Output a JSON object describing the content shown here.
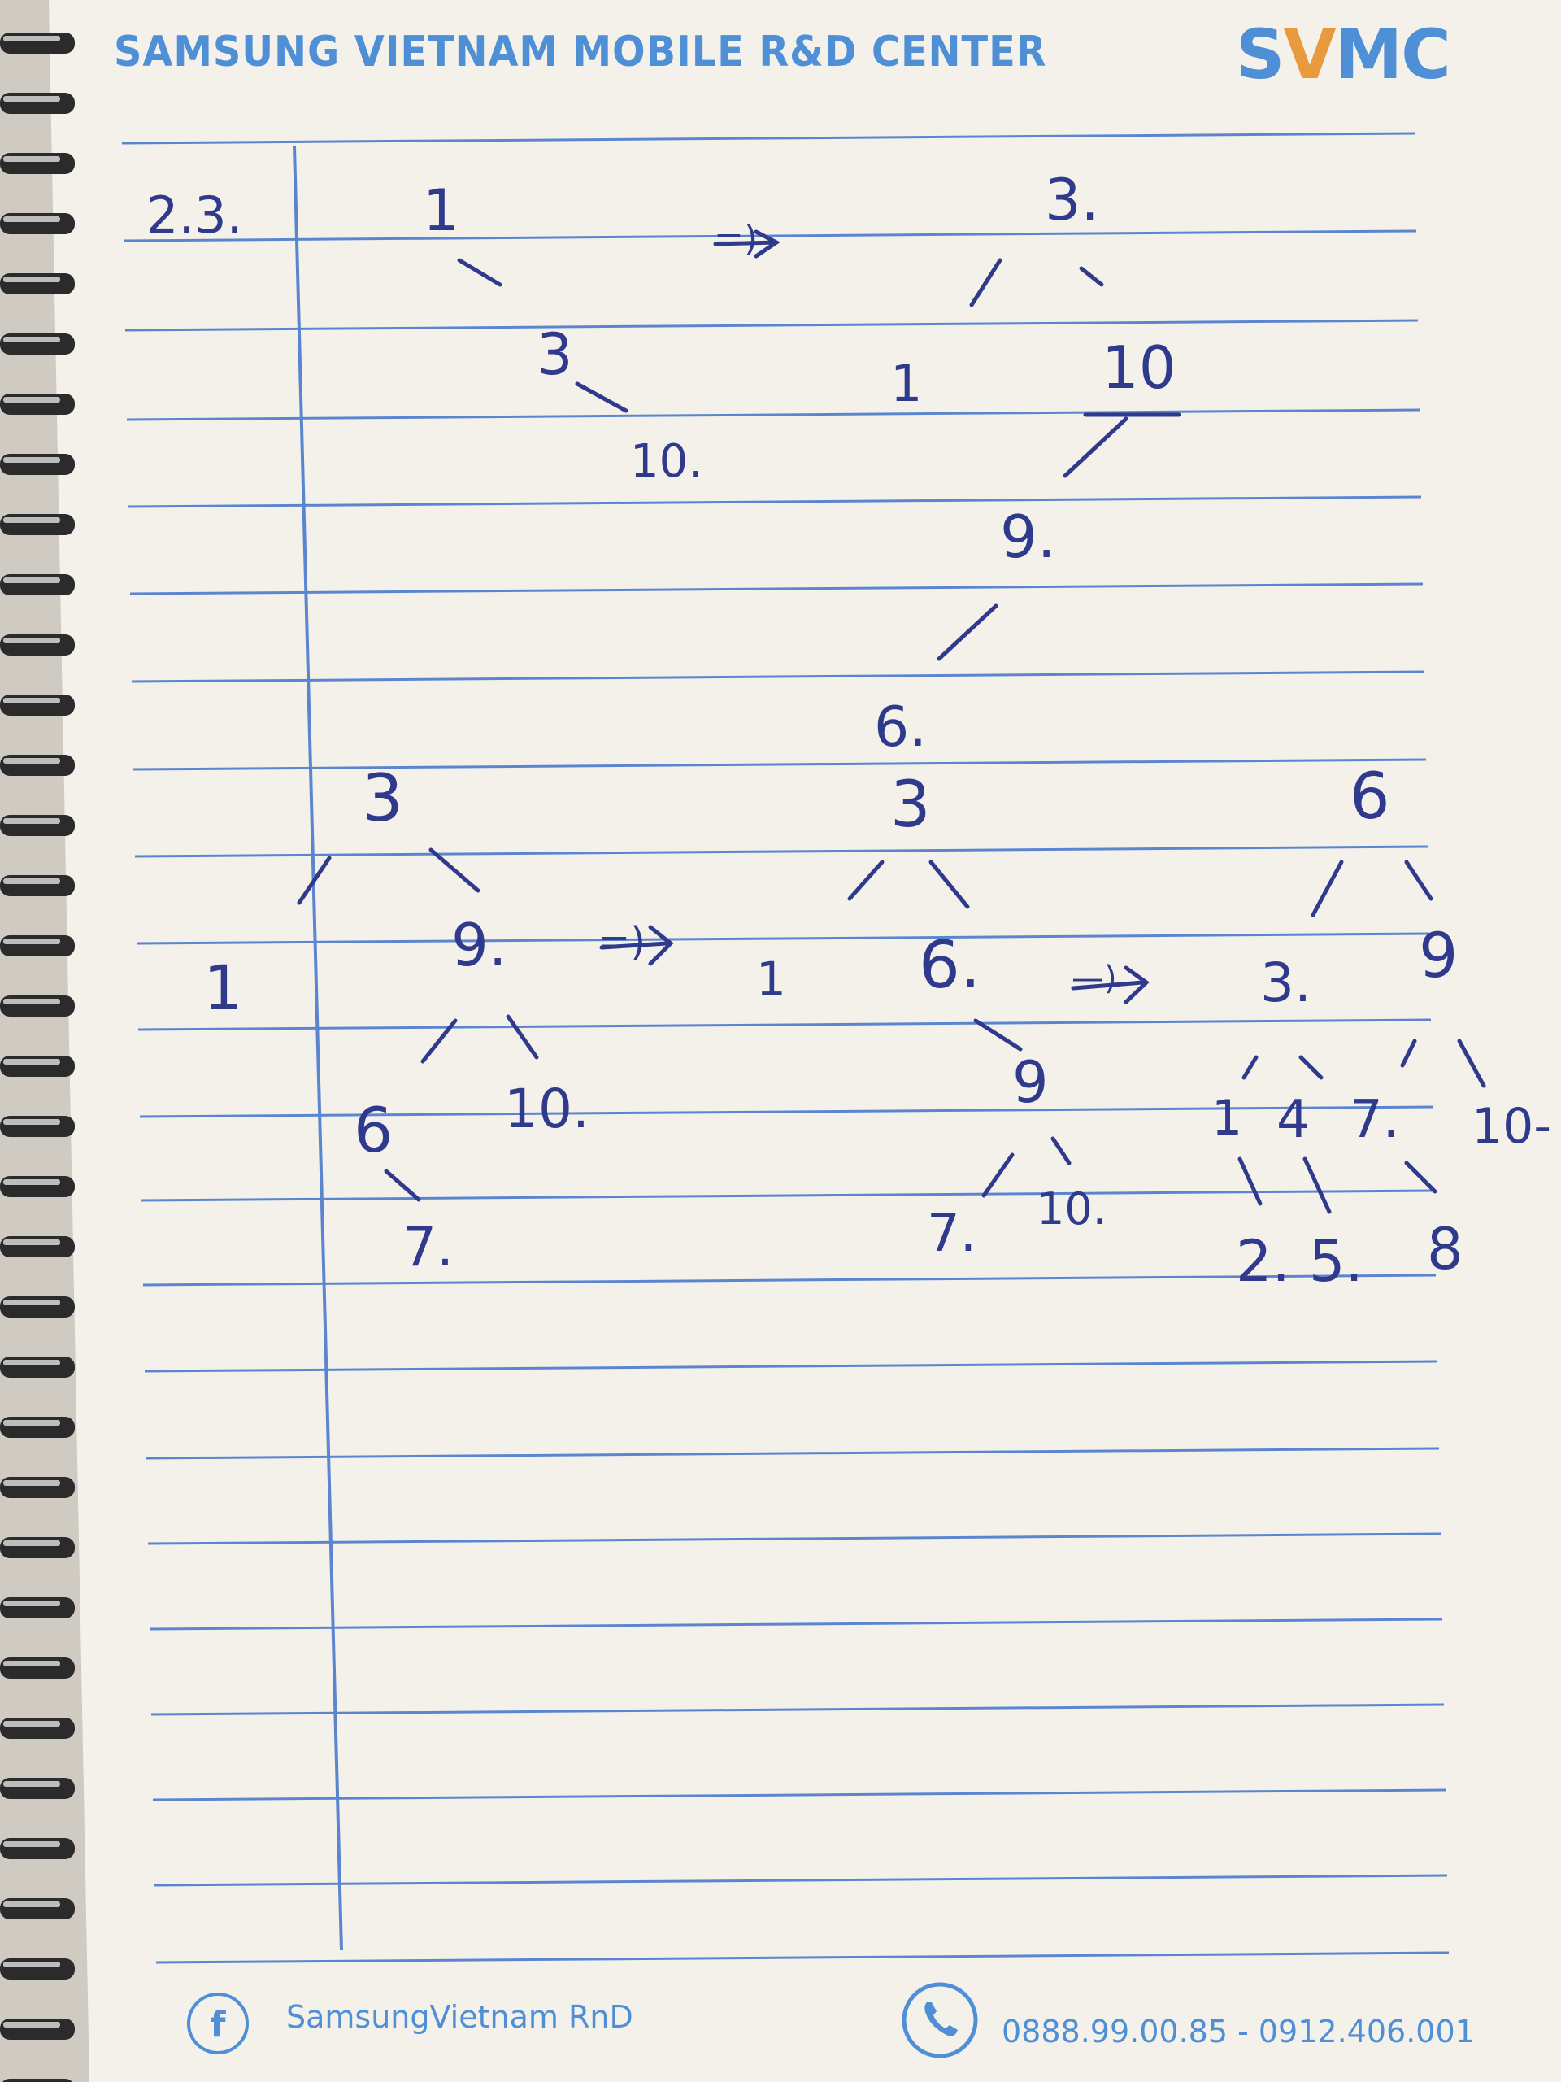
{
  "header": {
    "title": "SAMSUNG VIETNAM MOBILE R&D CENTER",
    "logo_left": "S",
    "logo_v": "V",
    "logo_right": "MC"
  },
  "notes": {
    "problem_label": "2.3.",
    "stage1": {
      "n1": "1",
      "n3": "3",
      "n10": "10.",
      "arrow": "=)"
    },
    "stage2": {
      "n3": "3.",
      "n1": "1",
      "n10": "10",
      "n9": "9.",
      "n6": "6."
    },
    "stage3": {
      "n3": "3",
      "n1": "1",
      "n9": "9.",
      "n6": "6",
      "n10": "10.",
      "n7": "7.",
      "arrow": "=)"
    },
    "stage4": {
      "n3": "3",
      "n1": "1",
      "n6": "6.",
      "n9": "9",
      "n7": "7.",
      "n10": "10.",
      "arrow": "—)"
    },
    "stage5": {
      "n6": "6",
      "n3": "3.",
      "n9": "9",
      "n1": "1",
      "n4": "4",
      "n7": "7.",
      "n10": "10-",
      "n2": "2.",
      "n5": "5.",
      "n8": "8"
    }
  },
  "footer": {
    "facebook": "SamsungVietnam RnD",
    "phone": "0888.99.00.85 - 0912.406.001"
  },
  "colors": {
    "paper": "#f4f1ea",
    "rule": "#5b86cf",
    "ink": "#2f3a8c",
    "brand": "#4f8fd6",
    "accent": "#e89a3c"
  }
}
